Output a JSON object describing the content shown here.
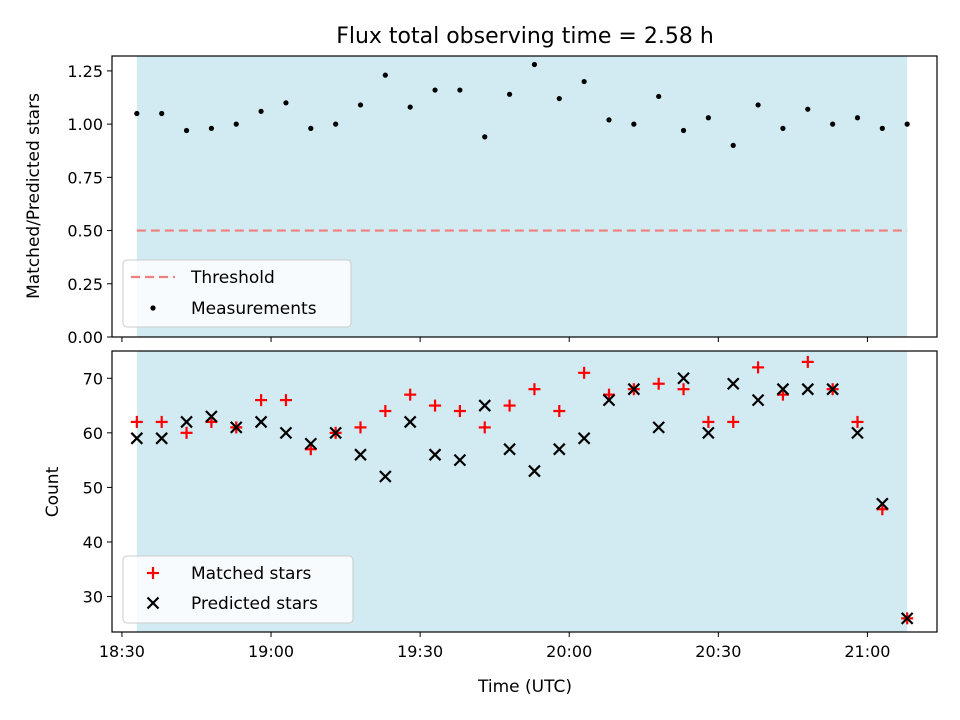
{
  "figure": {
    "title": "Flux total observing time = 2.58 h",
    "xlabel": "Time (UTC)",
    "x_ticks": [
      "18:30",
      "19:00",
      "19:30",
      "20:00",
      "20:30",
      "21:00"
    ]
  },
  "colors": {
    "band": "#add8e6",
    "threshold": "#f08080",
    "matched": "#ff0000",
    "predicted": "#000000",
    "measurement": "#000000"
  },
  "chart_data": [
    {
      "type": "scatter",
      "panel": "top",
      "title": "Flux total observing time = 2.58 h",
      "ylabel": "Matched/Predicted stars",
      "ylim": [
        0,
        1.32
      ],
      "y_ticks": [
        "0.00",
        "0.25",
        "0.50",
        "0.75",
        "1.00",
        "1.25"
      ],
      "xlim": [
        "18:28",
        "21:14"
      ],
      "observing_window": [
        "18:33",
        "21:08"
      ],
      "threshold": 0.5,
      "legend_position": "lower-left",
      "legend": [
        "Threshold",
        "Measurements"
      ],
      "series": [
        {
          "name": "Measurements",
          "x": [
            "18:33",
            "18:38",
            "18:43",
            "18:48",
            "18:53",
            "18:58",
            "19:03",
            "19:08",
            "19:13",
            "19:18",
            "19:23",
            "19:28",
            "19:33",
            "19:38",
            "19:43",
            "19:48",
            "19:53",
            "19:58",
            "20:03",
            "20:08",
            "20:13",
            "20:18",
            "20:23",
            "20:28",
            "20:33",
            "20:38",
            "20:43",
            "20:48",
            "20:53",
            "20:58",
            "21:03",
            "21:08"
          ],
          "y": [
            1.05,
            1.05,
            0.97,
            0.98,
            1.0,
            1.06,
            1.1,
            0.98,
            1.0,
            1.09,
            1.23,
            1.08,
            1.16,
            1.16,
            0.94,
            1.14,
            1.28,
            1.12,
            1.2,
            1.02,
            1.0,
            1.13,
            0.97,
            1.03,
            0.9,
            1.09,
            0.98,
            1.07,
            1.0,
            1.03,
            0.98,
            1.0
          ]
        }
      ]
    },
    {
      "type": "scatter",
      "panel": "bottom",
      "ylabel": "Count",
      "xlabel": "Time (UTC)",
      "ylim": [
        23.5,
        75
      ],
      "y_ticks": [
        "30",
        "40",
        "50",
        "60",
        "70"
      ],
      "xlim": [
        "18:28",
        "21:14"
      ],
      "legend_position": "lower-left",
      "legend": [
        "Matched stars",
        "Predicted stars"
      ],
      "x": [
        "18:33",
        "18:38",
        "18:43",
        "18:48",
        "18:53",
        "18:58",
        "19:03",
        "19:08",
        "19:13",
        "19:18",
        "19:23",
        "19:28",
        "19:33",
        "19:38",
        "19:43",
        "19:48",
        "19:53",
        "19:58",
        "20:03",
        "20:08",
        "20:13",
        "20:18",
        "20:23",
        "20:28",
        "20:33",
        "20:38",
        "20:43",
        "20:48",
        "20:53",
        "20:58",
        "21:03",
        "21:08"
      ],
      "series": [
        {
          "name": "Matched stars",
          "values": [
            62,
            62,
            60,
            62,
            61,
            66,
            66,
            57,
            60,
            61,
            64,
            67,
            65,
            64,
            61,
            65,
            68,
            64,
            71,
            67,
            68,
            69,
            68,
            62,
            62,
            72,
            67,
            73,
            68,
            62,
            46,
            26
          ]
        },
        {
          "name": "Predicted stars",
          "values": [
            59,
            59,
            62,
            63,
            61,
            62,
            60,
            58,
            60,
            56,
            52,
            62,
            56,
            55,
            65,
            57,
            53,
            57,
            59,
            66,
            68,
            61,
            70,
            60,
            69,
            66,
            68,
            68,
            68,
            60,
            47,
            26
          ]
        }
      ]
    }
  ]
}
